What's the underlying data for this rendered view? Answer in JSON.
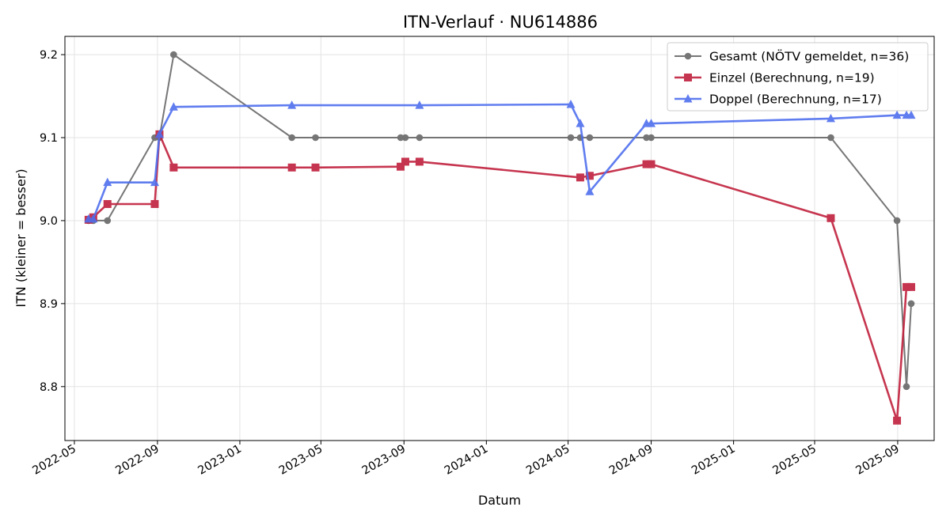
{
  "chart_data": {
    "type": "line",
    "title": "ITN-Verlauf · NU614886",
    "xlabel": "Datum",
    "ylabel": "ITN  (kleiner = besser)",
    "x_type": "date",
    "xlim": [
      "2022-04-17",
      "2025-10-25"
    ],
    "ylim": [
      8.735,
      9.222
    ],
    "x_ticks": [
      "2022-05-01",
      "2022-09-01",
      "2023-01-01",
      "2023-05-01",
      "2023-09-01",
      "2024-01-01",
      "2024-05-01",
      "2024-09-01",
      "2025-01-01",
      "2025-05-01",
      "2025-09-01"
    ],
    "x_tick_labels": [
      "2022-05",
      "2022-09",
      "2023-01",
      "2023-05",
      "2023-09",
      "2024-01",
      "2024-05",
      "2024-09",
      "2025-01",
      "2025-05",
      "2025-09"
    ],
    "y_ticks": [
      8.8,
      8.9,
      9.0,
      9.1,
      9.2
    ],
    "y_tick_labels": [
      "8.8",
      "8.9",
      "9.0",
      "9.1",
      "9.2"
    ],
    "grid": true,
    "legend_position": "top-right",
    "series": [
      {
        "name": "Gesamt (NÖTV gemeldet, n=36)",
        "color": "#555555",
        "marker": "circle",
        "points": [
          [
            "2022-05-22",
            9.0
          ],
          [
            "2022-05-29",
            9.0
          ],
          [
            "2022-06-19",
            9.0
          ],
          [
            "2022-08-28",
            9.1
          ],
          [
            "2022-09-04",
            9.1
          ],
          [
            "2022-09-25",
            9.2
          ],
          [
            "2023-03-19",
            9.1
          ],
          [
            "2023-04-23",
            9.1
          ],
          [
            "2023-08-27",
            9.1
          ],
          [
            "2023-09-03",
            9.1
          ],
          [
            "2023-09-24",
            9.1
          ],
          [
            "2024-05-05",
            9.1
          ],
          [
            "2024-05-19",
            9.1
          ],
          [
            "2024-06-02",
            9.1
          ],
          [
            "2024-08-25",
            9.1
          ],
          [
            "2024-09-01",
            9.1
          ],
          [
            "2025-05-25",
            9.1
          ],
          [
            "2025-08-31",
            9.0
          ],
          [
            "2025-09-14",
            8.8
          ],
          [
            "2025-09-21",
            8.9
          ]
        ]
      },
      {
        "name": "Einzel (Berechnung, n=19)",
        "color": "#c0203c",
        "marker": "square",
        "points": [
          [
            "2022-05-22",
            9.001
          ],
          [
            "2022-05-29",
            9.004
          ],
          [
            "2022-06-19",
            9.02
          ],
          [
            "2022-08-28",
            9.02
          ],
          [
            "2022-09-04",
            9.104
          ],
          [
            "2022-09-25",
            9.064
          ],
          [
            "2023-03-19",
            9.064
          ],
          [
            "2023-04-23",
            9.064
          ],
          [
            "2023-08-27",
            9.065
          ],
          [
            "2023-09-03",
            9.071
          ],
          [
            "2023-09-24",
            9.071
          ],
          [
            "2024-05-19",
            9.052
          ],
          [
            "2024-06-02",
            9.054
          ],
          [
            "2024-08-25",
            9.068
          ],
          [
            "2024-09-01",
            9.068
          ],
          [
            "2025-05-25",
            9.003
          ],
          [
            "2025-08-31",
            8.759
          ],
          [
            "2025-09-14",
            8.92
          ],
          [
            "2025-09-21",
            8.92
          ]
        ]
      },
      {
        "name": "Doppel (Berechnung, n=17)",
        "color": "#4f6fee",
        "marker": "triangle",
        "points": [
          [
            "2022-05-22",
            9.002
          ],
          [
            "2022-05-29",
            9.002
          ],
          [
            "2022-06-19",
            9.046
          ],
          [
            "2022-08-28",
            9.046
          ],
          [
            "2022-09-04",
            9.104
          ],
          [
            "2022-09-25",
            9.137
          ],
          [
            "2023-03-19",
            9.139
          ],
          [
            "2023-09-24",
            9.139
          ],
          [
            "2024-05-05",
            9.14
          ],
          [
            "2024-05-19",
            9.117
          ],
          [
            "2024-06-02",
            9.035
          ],
          [
            "2024-08-25",
            9.117
          ],
          [
            "2024-09-01",
            9.117
          ],
          [
            "2025-05-25",
            9.123
          ],
          [
            "2025-08-31",
            9.127
          ],
          [
            "2025-09-14",
            9.127
          ],
          [
            "2025-09-21",
            9.127
          ]
        ]
      }
    ]
  }
}
